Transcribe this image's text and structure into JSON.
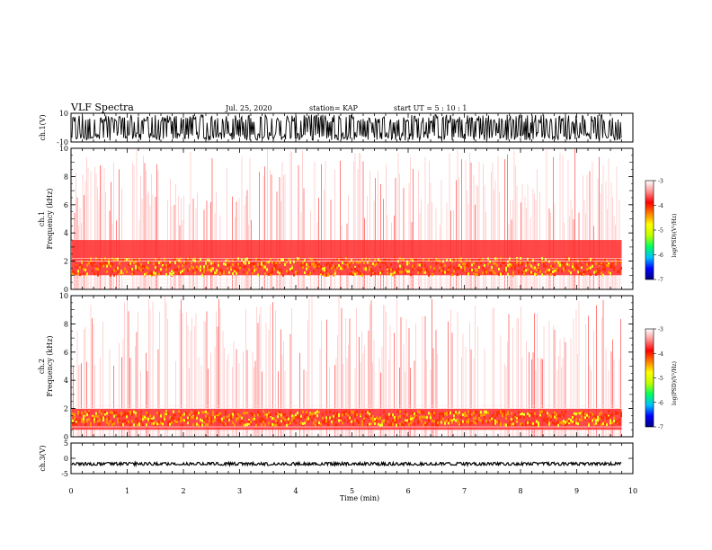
{
  "header": {
    "title": "VLF Spectra",
    "date": "Jul. 25, 2020",
    "station": "station= KAP",
    "start": "start  UT =   5 : 10 : 1"
  },
  "chart_data": [
    {
      "type": "line",
      "id": "ch1-waveform",
      "ylabel": "ch.1(V)",
      "ylim": [
        -10,
        10
      ],
      "y_ticks": [
        "10",
        "-10"
      ],
      "x_range": [
        0,
        10
      ],
      "data_extent_min": 9.8,
      "description_values": {
        "typical_amplitude_V": 9
      }
    },
    {
      "type": "heatmap",
      "id": "ch1-spectrogram",
      "channel_label": "ch.1",
      "ylabel": "Frequency (kHz)",
      "ylim": [
        0,
        10
      ],
      "y_ticks": [
        "0",
        "2",
        "4",
        "6",
        "8",
        "10"
      ],
      "x_range": [
        0,
        10
      ],
      "data_extent_min": 9.8,
      "strong_band_kHz": [
        1,
        3.5
      ],
      "very_strong_band_kHz": [
        1,
        2.2
      ]
    },
    {
      "type": "heatmap",
      "id": "ch2-spectrogram",
      "channel_label": "ch.2",
      "ylabel": "Frequency (kHz)",
      "ylim": [
        0,
        10
      ],
      "y_ticks": [
        "0",
        "2",
        "4",
        "6",
        "8",
        "10"
      ],
      "x_range": [
        0,
        10
      ],
      "data_extent_min": 9.8,
      "strong_band_kHz": [
        0.5,
        2
      ],
      "very_strong_band_kHz": [
        0.8,
        1.8
      ]
    },
    {
      "type": "line",
      "id": "ch3-waveform",
      "ylabel": "ch.3(V)",
      "ylim": [
        -5,
        5
      ],
      "y_ticks": [
        "5",
        "0",
        "-5"
      ],
      "x_range": [
        0,
        10
      ],
      "data_extent_min": 9.8,
      "description_values": {
        "level_V": -1.8,
        "amplitude_V": 0.5
      }
    }
  ],
  "x_axis": {
    "label": "Time (min)",
    "ticks": [
      "0",
      "1",
      "2",
      "3",
      "4",
      "5",
      "6",
      "7",
      "8",
      "9",
      "10"
    ]
  },
  "colorbars": [
    {
      "label": "log(PSD)(V²/Hz)",
      "ticks": [
        "-3",
        "-4",
        "-5",
        "-6",
        "-7"
      ],
      "range": [
        -7,
        -3
      ],
      "colors": [
        "#000080",
        "#0000ff",
        "#00c0ff",
        "#00ff60",
        "#c0ff00",
        "#ffff00",
        "#ff8000",
        "#ff0000",
        "#ff9090",
        "#ffffff"
      ]
    },
    {
      "label": "log(PSD)(V²/Hz)",
      "ticks": [
        "-3",
        "-4",
        "-5",
        "-6",
        "-7"
      ],
      "range": [
        -7,
        -3
      ],
      "colors": [
        "#000080",
        "#0000ff",
        "#00c0ff",
        "#00ff60",
        "#c0ff00",
        "#ffff00",
        "#ff8000",
        "#ff0000",
        "#ff9090",
        "#ffffff"
      ]
    }
  ]
}
